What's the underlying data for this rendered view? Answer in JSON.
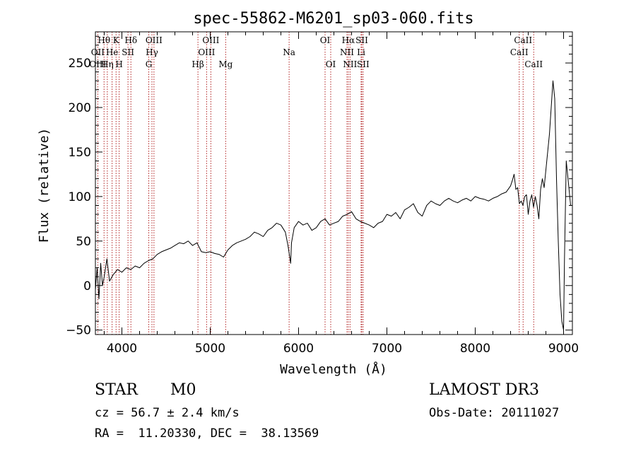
{
  "chart_data": {
    "type": "line",
    "title": "spec-55862-M6201_sp03-060.fits",
    "xlabel": "Wavelength (Å)",
    "ylabel": "Flux (relative)",
    "xlim": [
      3700,
      9100
    ],
    "ylim": [
      -55,
      285
    ],
    "xticks": [
      4000,
      5000,
      6000,
      7000,
      8000,
      9000
    ],
    "xtick_labels": [
      "4000",
      "5000",
      "6000",
      "7000",
      "8000",
      "9000"
    ],
    "yticks": [
      -50,
      0,
      50,
      100,
      150,
      200,
      250
    ],
    "ytick_labels": [
      "−50",
      "0",
      "50",
      "100",
      "150",
      "200",
      "250"
    ],
    "series": [
      {
        "name": "flux",
        "x": [
          3700,
          3720,
          3740,
          3760,
          3780,
          3800,
          3830,
          3860,
          3900,
          3950,
          4000,
          4050,
          4100,
          4150,
          4200,
          4250,
          4300,
          4350,
          4400,
          4450,
          4500,
          4550,
          4600,
          4650,
          4700,
          4750,
          4800,
          4850,
          4900,
          4950,
          5000,
          5050,
          5100,
          5150,
          5200,
          5250,
          5300,
          5350,
          5400,
          5450,
          5500,
          5550,
          5600,
          5650,
          5700,
          5750,
          5800,
          5850,
          5880,
          5900,
          5910,
          5920,
          5950,
          6000,
          6050,
          6100,
          6150,
          6200,
          6250,
          6300,
          6350,
          6400,
          6450,
          6500,
          6550,
          6600,
          6650,
          6700,
          6750,
          6800,
          6850,
          6900,
          6950,
          7000,
          7050,
          7100,
          7150,
          7200,
          7250,
          7300,
          7350,
          7400,
          7450,
          7500,
          7550,
          7600,
          7650,
          7700,
          7750,
          7800,
          7850,
          7900,
          7950,
          8000,
          8050,
          8100,
          8150,
          8200,
          8250,
          8300,
          8350,
          8400,
          8420,
          8440,
          8460,
          8480,
          8500,
          8520,
          8540,
          8560,
          8580,
          8600,
          8620,
          8640,
          8660,
          8680,
          8700,
          8720,
          8740,
          8760,
          8780,
          8800,
          8820,
          8840,
          8860,
          8880,
          8900,
          8920,
          8940,
          8960,
          8980,
          9000,
          9010,
          9030,
          9050,
          9080
        ],
        "values": [
          -5,
          20,
          -15,
          25,
          0,
          10,
          30,
          5,
          12,
          18,
          15,
          20,
          18,
          22,
          20,
          25,
          28,
          30,
          35,
          38,
          40,
          42,
          45,
          48,
          47,
          50,
          45,
          48,
          38,
          37,
          38,
          36,
          35,
          32,
          40,
          45,
          48,
          50,
          52,
          55,
          60,
          58,
          55,
          62,
          65,
          70,
          68,
          60,
          45,
          32,
          25,
          48,
          65,
          72,
          68,
          70,
          62,
          65,
          72,
          75,
          68,
          70,
          72,
          78,
          80,
          83,
          75,
          72,
          70,
          68,
          65,
          70,
          72,
          80,
          78,
          82,
          75,
          85,
          88,
          92,
          82,
          78,
          90,
          95,
          92,
          90,
          95,
          98,
          95,
          93,
          96,
          98,
          95,
          100,
          98,
          97,
          95,
          98,
          100,
          103,
          105,
          112,
          118,
          125,
          108,
          110,
          92,
          95,
          90,
          100,
          102,
          80,
          95,
          102,
          88,
          100,
          90,
          75,
          108,
          120,
          110,
          130,
          150,
          170,
          200,
          230,
          210,
          120,
          50,
          -10,
          -40,
          -50,
          30,
          140,
          120,
          90
        ]
      }
    ],
    "line_labels": [
      {
        "text": "Hθ",
        "wl": 3798,
        "row": 0
      },
      {
        "text": "OII",
        "wl": 3727,
        "row": 1
      },
      {
        "text": "OIII",
        "wl": 3727,
        "row": 2
      },
      {
        "text": "K",
        "wl": 3934,
        "row": 0
      },
      {
        "text": "He",
        "wl": 3889,
        "row": 1
      },
      {
        "text": "Hη",
        "wl": 3835,
        "row": 2
      },
      {
        "text": "H",
        "wl": 3969,
        "row": 2
      },
      {
        "text": "SII",
        "wl": 4069,
        "row": 1
      },
      {
        "text": "Hδ",
        "wl": 4102,
        "row": 0
      },
      {
        "text": "OIII",
        "wl": 4363,
        "row": 0
      },
      {
        "text": "Hγ",
        "wl": 4340,
        "row": 1
      },
      {
        "text": "G",
        "wl": 4304,
        "row": 2
      },
      {
        "text": "OIII",
        "wl": 5007,
        "row": 0
      },
      {
        "text": "OIII",
        "wl": 4959,
        "row": 1
      },
      {
        "text": "Hβ",
        "wl": 4861,
        "row": 2
      },
      {
        "text": "Mg",
        "wl": 5175,
        "row": 2
      },
      {
        "text": "Na",
        "wl": 5893,
        "row": 1
      },
      {
        "text": "OI",
        "wl": 6300,
        "row": 0
      },
      {
        "text": "OI",
        "wl": 6364,
        "row": 2
      },
      {
        "text": "Hα",
        "wl": 6563,
        "row": 0
      },
      {
        "text": "SII",
        "wl": 6716,
        "row": 0
      },
      {
        "text": "NII",
        "wl": 6548,
        "row": 1
      },
      {
        "text": "Li",
        "wl": 6708,
        "row": 1
      },
      {
        "text": "NII",
        "wl": 6583,
        "row": 2
      },
      {
        "text": "SII",
        "wl": 6731,
        "row": 2
      },
      {
        "text": "CaII",
        "wl": 8542,
        "row": 0
      },
      {
        "text": "CaII",
        "wl": 8498,
        "row": 1
      },
      {
        "text": "CaII",
        "wl": 8662,
        "row": 2
      }
    ],
    "line_markers": [
      3727,
      3798,
      3835,
      3889,
      3934,
      3969,
      4069,
      4102,
      4304,
      4340,
      4363,
      4861,
      4959,
      5007,
      5175,
      5893,
      6300,
      6364,
      6548,
      6563,
      6583,
      6708,
      6716,
      6731,
      8498,
      8542,
      8662
    ],
    "colors": {
      "spectrum": "#000000",
      "markers": "#b22222",
      "axes": "#000000"
    }
  },
  "info": {
    "class_label": "STAR",
    "subclass": "M0",
    "survey": "LAMOST DR3",
    "cz_line": "cz = 56.7 ± 2.4 km/s",
    "obs_date_line": "Obs-Date: 20111027",
    "coords_line": "RA =  11.20330, DEC =  38.13569"
  }
}
